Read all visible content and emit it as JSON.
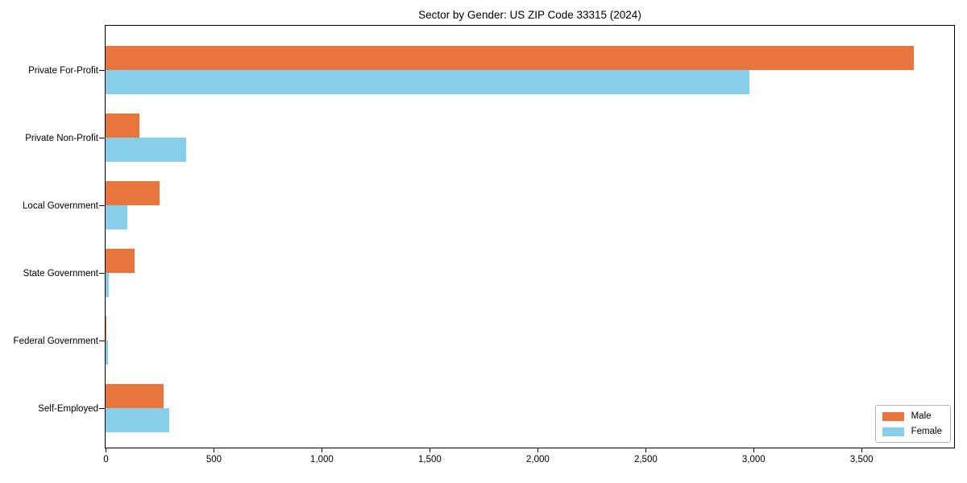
{
  "chart_data": {
    "type": "bar",
    "orientation": "horizontal",
    "title": "Sector by Gender: US ZIP Code 33315 (2024)",
    "categories": [
      "Private For-Profit",
      "Private Non-Profit",
      "Local Government",
      "State Government",
      "Federal Government",
      "Self-Employed"
    ],
    "series": [
      {
        "name": "Male",
        "color": "#e8763c",
        "values": [
          3742,
          157,
          250,
          136,
          4,
          267
        ]
      },
      {
        "name": "Female",
        "color": "#87ceeb",
        "values": [
          2981,
          373,
          101,
          14,
          10,
          294
        ]
      }
    ],
    "xlabel": "",
    "ylabel": "",
    "xlim": [
      0,
      3930
    ],
    "xticks": [
      0,
      500,
      1000,
      1500,
      2000,
      2500,
      3000,
      3500
    ],
    "xtick_labels": [
      "0",
      "500",
      "1,000",
      "1,500",
      "2,000",
      "2,500",
      "3,000",
      "3,500"
    ],
    "grid": false,
    "legend_position": "lower right",
    "frame_color": "#000000",
    "background_color": "#ffffff"
  }
}
